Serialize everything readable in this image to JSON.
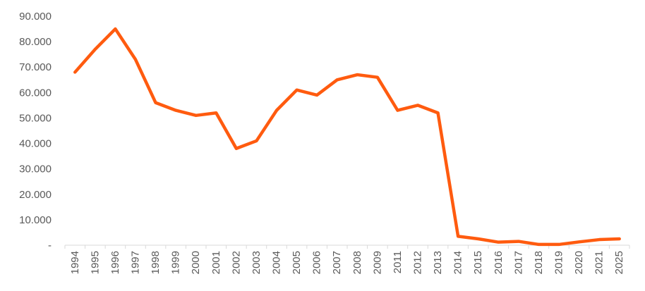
{
  "chart_data": {
    "type": "line",
    "title": "",
    "xlabel": "",
    "ylabel": "",
    "ylim": [
      0,
      90000
    ],
    "y_ticks": [
      0,
      10000,
      20000,
      30000,
      40000,
      50000,
      60000,
      70000,
      80000,
      90000
    ],
    "y_tick_labels": [
      "-",
      "10.000",
      "20.000",
      "30.000",
      "40.000",
      "50.000",
      "60.000",
      "70.000",
      "80.000",
      "90.000"
    ],
    "grid": false,
    "legend": "none",
    "categories": [
      "1994",
      "1995",
      "1996",
      "1997",
      "1998",
      "1999",
      "2000",
      "2001",
      "2002",
      "2003",
      "2004",
      "2005",
      "2006",
      "2007",
      "2008",
      "2009",
      "2011",
      "2012",
      "2013",
      "2014",
      "2015",
      "2016",
      "2017",
      "2018",
      "2019",
      "2020",
      "2021",
      "2025"
    ],
    "series": [
      {
        "color": "#FF5B0F",
        "values": [
          68000,
          77000,
          85000,
          73000,
          56000,
          53000,
          51000,
          52000,
          38000,
          41000,
          53000,
          61000,
          59000,
          65000,
          67000,
          66000,
          53000,
          55000,
          52000,
          3500,
          2500,
          1200,
          1500,
          300,
          300,
          1300,
          2200,
          2500
        ]
      }
    ]
  }
}
